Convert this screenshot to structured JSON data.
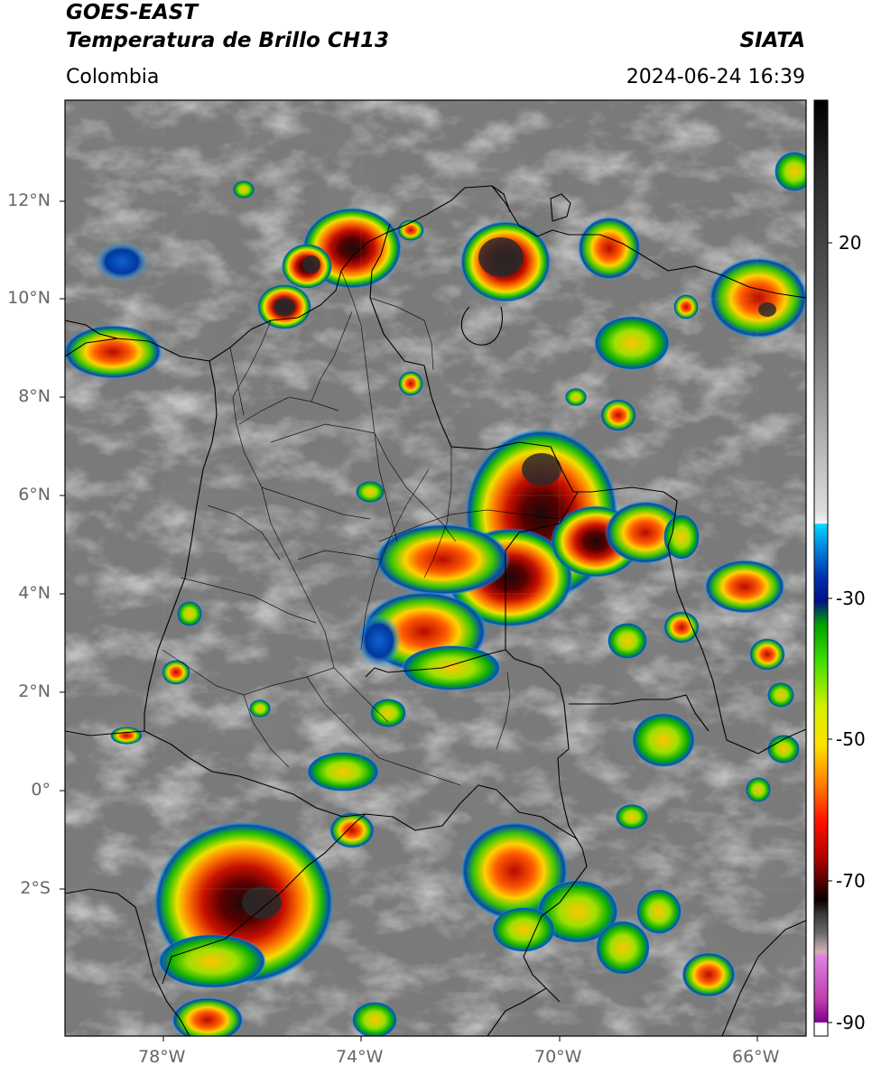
{
  "header": {
    "satellite": "GOES-EAST",
    "product": "Temperatura de Brillo CH13",
    "region": "Colombia",
    "source": "SIATA",
    "datetime": "2024-06-24 16:39"
  },
  "map": {
    "lon_range": [
      -80,
      -65
    ],
    "lat_range": [
      -5,
      14
    ],
    "lat_ticks": [
      {
        "value": 12,
        "label": "12°N"
      },
      {
        "value": 10,
        "label": "10°N"
      },
      {
        "value": 8,
        "label": "8°N"
      },
      {
        "value": 6,
        "label": "6°N"
      },
      {
        "value": 4,
        "label": "4°N"
      },
      {
        "value": 2,
        "label": "2°N"
      },
      {
        "value": 0,
        "label": "0°"
      },
      {
        "value": -2,
        "label": "2°S"
      }
    ],
    "lon_ticks": [
      {
        "value": -78,
        "label": "78°W"
      },
      {
        "value": -74,
        "label": "74°W"
      },
      {
        "value": -70,
        "label": "70°W"
      },
      {
        "value": -66,
        "label": "66°W"
      }
    ],
    "colorbar": {
      "range": [
        -92,
        36
      ],
      "ticks": [
        {
          "value": 20,
          "label": "20"
        },
        {
          "value": -30,
          "label": "-30"
        },
        {
          "value": -50,
          "label": "-50"
        },
        {
          "value": -70,
          "label": "-70"
        },
        {
          "value": -90,
          "label": "-90"
        }
      ]
    }
  }
}
